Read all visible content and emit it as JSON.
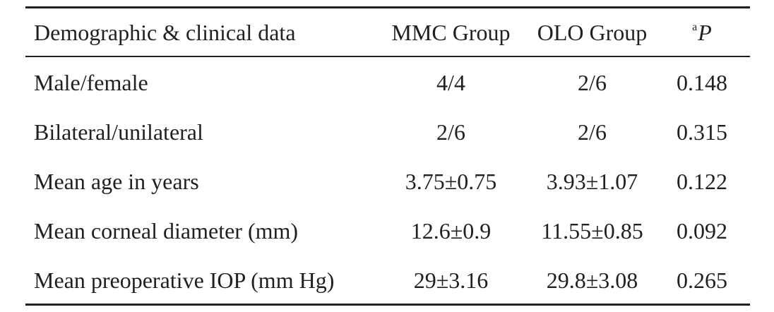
{
  "table": {
    "headers": {
      "label": "Demographic & clinical data",
      "group1": "MMC Group",
      "group2": "OLO Group",
      "pvalue_superscript": "a",
      "pvalue": "P"
    },
    "rows": [
      {
        "label": "Male/female",
        "group1": "4/4",
        "group2": "2/6",
        "pvalue": "0.148"
      },
      {
        "label": "Bilateral/unilateral",
        "group1": "2/6",
        "group2": "2/6",
        "pvalue": "0.315"
      },
      {
        "label": "Mean age in years",
        "group1": "3.75±0.75",
        "group2": "3.93±1.07",
        "pvalue": "0.122"
      },
      {
        "label": "Mean corneal diameter (mm)",
        "group1": "12.6±0.9",
        "group2": "11.55±0.85",
        "pvalue": "0.092"
      },
      {
        "label": "Mean preoperative IOP (mm Hg)",
        "group1": "29±3.16",
        "group2": "29.8±3.08",
        "pvalue": "0.265"
      }
    ]
  }
}
